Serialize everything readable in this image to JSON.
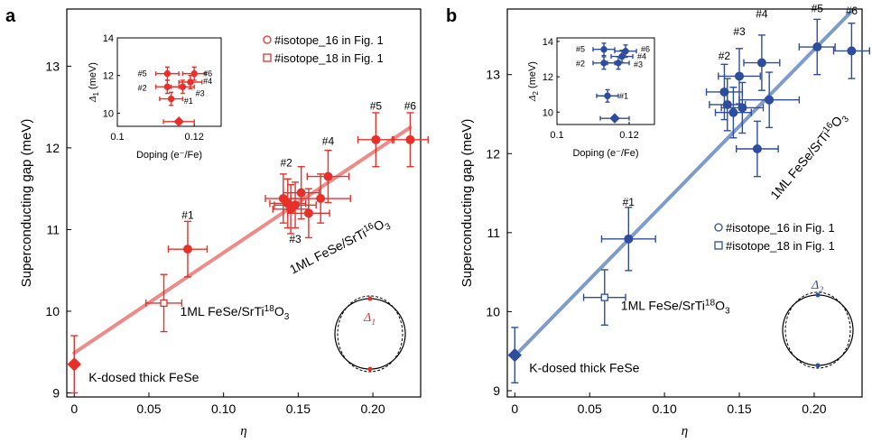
{
  "chart_data": [
    {
      "type": "scatter",
      "panel_label": "a",
      "color": "#e8302a",
      "fit_color": "#ee8a87",
      "xlabel": "η",
      "ylabel": "Superconducting gap (meV)",
      "xlim": [
        -0.005,
        0.232
      ],
      "ylim": [
        8.95,
        13.7
      ],
      "xticks": [
        "0",
        "0.05",
        "0.10",
        "0.15",
        "0.20"
      ],
      "xtick_values": [
        0,
        0.05,
        0.1,
        0.15,
        0.2
      ],
      "yticks": [
        "9",
        "10",
        "11",
        "12",
        "13"
      ],
      "ytick_values": [
        9,
        10,
        11,
        12,
        13
      ],
      "fit_line": {
        "x": [
          0,
          0.225
        ],
        "y": [
          9.49,
          12.25
        ]
      },
      "kdosed": {
        "x": 0,
        "y": 9.35,
        "yerr": 0.35,
        "label": "K-dosed thick FeSe"
      },
      "iso18": {
        "x": 0.06,
        "y": 10.1,
        "xerr": 0.012,
        "yerr": 0.35,
        "label_main": "1ML FeSe/SrTi",
        "label_sup": "18",
        "label_end": "O",
        "label_sub": "3"
      },
      "iso16_label": {
        "main": "1ML FeSe/SrTi",
        "sup": "16",
        "end": "O",
        "sub": "3"
      },
      "points": [
        {
          "id": "#1",
          "x": 0.076,
          "y": 10.76,
          "xerr": 0.013,
          "yerr": 0.34
        },
        {
          "id": "#2a",
          "x": 0.14,
          "y": 11.38,
          "xerr": 0.012,
          "yerr": 0.3
        },
        {
          "id": "#2b",
          "x": 0.143,
          "y": 11.32,
          "xerr": 0.012,
          "yerr": 0.3
        },
        {
          "id": "#2c",
          "x": 0.145,
          "y": 11.25,
          "xerr": 0.012,
          "yerr": 0.3
        },
        {
          "id": "#3",
          "x": 0.148,
          "y": 11.3,
          "xerr": 0.014,
          "yerr": 0.28
        },
        {
          "id": "#3b",
          "x": 0.152,
          "y": 11.45,
          "xerr": 0.012,
          "yerr": 0.32
        },
        {
          "id": "#3c",
          "x": 0.157,
          "y": 11.2,
          "xerr": 0.014,
          "yerr": 0.3
        },
        {
          "id": "#4",
          "x": 0.17,
          "y": 11.65,
          "xerr": 0.014,
          "yerr": 0.32
        },
        {
          "id": "#4b",
          "x": 0.165,
          "y": 11.38,
          "xerr": 0.02,
          "yerr": 0.3
        },
        {
          "id": "#5",
          "x": 0.202,
          "y": 12.1,
          "xerr": 0.012,
          "yerr": 0.33
        },
        {
          "id": "#6",
          "x": 0.225,
          "y": 12.1,
          "xerr": 0.012,
          "yerr": 0.33
        }
      ],
      "point_labels": [
        {
          "text": "#1",
          "x": 0.076,
          "y": 11.13
        },
        {
          "text": "#2",
          "x": 0.142,
          "y": 11.77
        },
        {
          "text": "#3",
          "x": 0.148,
          "y": 10.84
        },
        {
          "text": "#4",
          "x": 0.17,
          "y": 12.04
        },
        {
          "text": "#5",
          "x": 0.202,
          "y": 12.47
        },
        {
          "text": "#6",
          "x": 0.225,
          "y": 12.47
        }
      ],
      "legend": [
        "#isotope_16 in Fig. 1",
        "#isotope_18 in Fig. 1"
      ],
      "gap_symbol": "Δ₁",
      "inset": {
        "xlabel": "Doping (e⁻/Fe)",
        "ylabel": "Δ₁ (meV)",
        "xlim": [
          0.1,
          0.127
        ],
        "ylim": [
          9.3,
          14
        ],
        "xticks": [
          "0.1",
          "0.12"
        ],
        "xtick_values": [
          0.1,
          0.12
        ],
        "yticks": [
          "10",
          "12",
          "14"
        ],
        "ytick_values": [
          10,
          12,
          14
        ],
        "points": [
          {
            "id": "#1",
            "x": 0.114,
            "y": 10.76,
            "xerr": 0.003,
            "yerr": 0.35
          },
          {
            "id": "#2",
            "x": 0.113,
            "y": 11.4,
            "xerr": 0.003,
            "yerr": 0.35
          },
          {
            "id": "#3",
            "x": 0.117,
            "y": 11.4,
            "xerr": 0.003,
            "yerr": 0.35
          },
          {
            "id": "#4",
            "x": 0.119,
            "y": 11.65,
            "xerr": 0.003,
            "yerr": 0.35
          },
          {
            "id": "#5",
            "x": 0.113,
            "y": 12.1,
            "xerr": 0.003,
            "yerr": 0.35
          },
          {
            "id": "#6",
            "x": 0.12,
            "y": 12.1,
            "xerr": 0.003,
            "yerr": 0.35
          }
        ],
        "kdosed": {
          "x": 0.116,
          "y": 9.55,
          "xerr": 0.004
        },
        "labels": [
          {
            "text": "#5",
            "x": 0.1065,
            "y": 12.1
          },
          {
            "text": "#6",
            "x": 0.1235,
            "y": 12.1
          },
          {
            "text": "#4",
            "x": 0.1235,
            "y": 11.7
          },
          {
            "text": "#2",
            "x": 0.1065,
            "y": 11.35
          },
          {
            "text": "#3",
            "x": 0.1215,
            "y": 11.05
          },
          {
            "text": "#1",
            "x": 0.1185,
            "y": 10.65
          }
        ]
      }
    },
    {
      "type": "scatter",
      "panel_label": "b",
      "color": "#2e4d9c",
      "fit_color": "#7e9ccb",
      "xlabel": "η",
      "ylabel": "Superconducting gap (meV)",
      "xlim": [
        -0.005,
        0.232
      ],
      "ylim": [
        8.92,
        13.83
      ],
      "xticks": [
        "0",
        "0.05",
        "0.10",
        "0.15",
        "0.20"
      ],
      "xtick_values": [
        0,
        0.05,
        0.1,
        0.15,
        0.2
      ],
      "yticks": [
        "9",
        "10",
        "11",
        "12",
        "13"
      ],
      "ytick_values": [
        9,
        10,
        11,
        12,
        13
      ],
      "fit_line": {
        "x": [
          0,
          0.225
        ],
        "y": [
          9.44,
          13.8
        ]
      },
      "kdosed": {
        "x": 0,
        "y": 9.45,
        "yerr": 0.35,
        "label": "K-dosed thick FeSe"
      },
      "iso18": {
        "x": 0.06,
        "y": 10.18,
        "xerr": 0.014,
        "yerr": 0.35,
        "label_main": "1ML FeSe/SrTi",
        "label_sup": "18",
        "label_end": "O",
        "label_sub": "3"
      },
      "iso16_label": {
        "main": "1ML FeSe/SrTi",
        "sup": "16",
        "end": "O",
        "sub": "3"
      },
      "points": [
        {
          "id": "#1",
          "x": 0.076,
          "y": 10.92,
          "xerr": 0.018,
          "yerr": 0.4
        },
        {
          "id": "#2",
          "x": 0.14,
          "y": 12.78,
          "xerr": 0.012,
          "yerr": 0.35
        },
        {
          "id": "#2b",
          "x": 0.142,
          "y": 12.62,
          "xerr": 0.012,
          "yerr": 0.33
        },
        {
          "id": "#2c",
          "x": 0.146,
          "y": 12.52,
          "xerr": 0.012,
          "yerr": 0.32
        },
        {
          "id": "#3",
          "x": 0.15,
          "y": 12.98,
          "xerr": 0.014,
          "yerr": 0.35
        },
        {
          "id": "#3b",
          "x": 0.152,
          "y": 12.58,
          "xerr": 0.014,
          "yerr": 0.32
        },
        {
          "id": "#4",
          "x": 0.165,
          "y": 13.15,
          "xerr": 0.012,
          "yerr": 0.35
        },
        {
          "id": "#4b",
          "x": 0.17,
          "y": 12.68,
          "xerr": 0.02,
          "yerr": 0.35
        },
        {
          "id": "#4c",
          "x": 0.162,
          "y": 12.06,
          "xerr": 0.014,
          "yerr": 0.35
        },
        {
          "id": "#5",
          "x": 0.202,
          "y": 13.35,
          "xerr": 0.012,
          "yerr": 0.35
        },
        {
          "id": "#6",
          "x": 0.225,
          "y": 13.3,
          "xerr": 0.012,
          "yerr": 0.35
        }
      ],
      "point_labels": [
        {
          "text": "#1",
          "x": 0.076,
          "y": 11.34
        },
        {
          "text": "#2",
          "x": 0.14,
          "y": 13.19
        },
        {
          "text": "#3",
          "x": 0.15,
          "y": 13.5
        },
        {
          "text": "#4",
          "x": 0.165,
          "y": 13.72
        },
        {
          "text": "#5",
          "x": 0.202,
          "y": 13.79
        },
        {
          "text": "#6",
          "x": 0.225,
          "y": 13.76
        }
      ],
      "legend": [
        "#isotope_16 in Fig. 1",
        "#isotope_18 in Fig. 1"
      ],
      "gap_symbol": "Δ₂",
      "inset": {
        "xlabel": "Doping (e⁻/Fe)",
        "ylabel": "Δ₂ (meV)",
        "xlim": [
          0.1,
          0.127
        ],
        "ylim": [
          9.3,
          14.2
        ],
        "xticks": [
          "0.1",
          "0.12"
        ],
        "xtick_values": [
          0.1,
          0.12
        ],
        "yticks": [
          "10",
          "12",
          "14"
        ],
        "ytick_values": [
          10,
          12,
          14
        ],
        "points": [
          {
            "id": "#1",
            "x": 0.114,
            "y": 10.92,
            "xerr": 0.003,
            "yerr": 0.35
          },
          {
            "id": "#2",
            "x": 0.113,
            "y": 12.78,
            "xerr": 0.003,
            "yerr": 0.35
          },
          {
            "id": "#3",
            "x": 0.117,
            "y": 12.78,
            "xerr": 0.003,
            "yerr": 0.35
          },
          {
            "id": "#4",
            "x": 0.118,
            "y": 13.15,
            "xerr": 0.003,
            "yerr": 0.35
          },
          {
            "id": "#5",
            "x": 0.113,
            "y": 13.55,
            "xerr": 0.003,
            "yerr": 0.35
          },
          {
            "id": "#6",
            "x": 0.119,
            "y": 13.45,
            "xerr": 0.003,
            "yerr": 0.35
          }
        ],
        "kdosed": {
          "x": 0.116,
          "y": 9.65,
          "xerr": 0.004
        },
        "labels": [
          {
            "text": "#5",
            "x": 0.1065,
            "y": 13.55
          },
          {
            "text": "#6",
            "x": 0.1245,
            "y": 13.55
          },
          {
            "text": "#4",
            "x": 0.1235,
            "y": 13.15
          },
          {
            "text": "#2",
            "x": 0.1065,
            "y": 12.75
          },
          {
            "text": "#3",
            "x": 0.1225,
            "y": 12.7
          },
          {
            "text": "#1",
            "x": 0.1185,
            "y": 10.9
          }
        ]
      }
    }
  ]
}
